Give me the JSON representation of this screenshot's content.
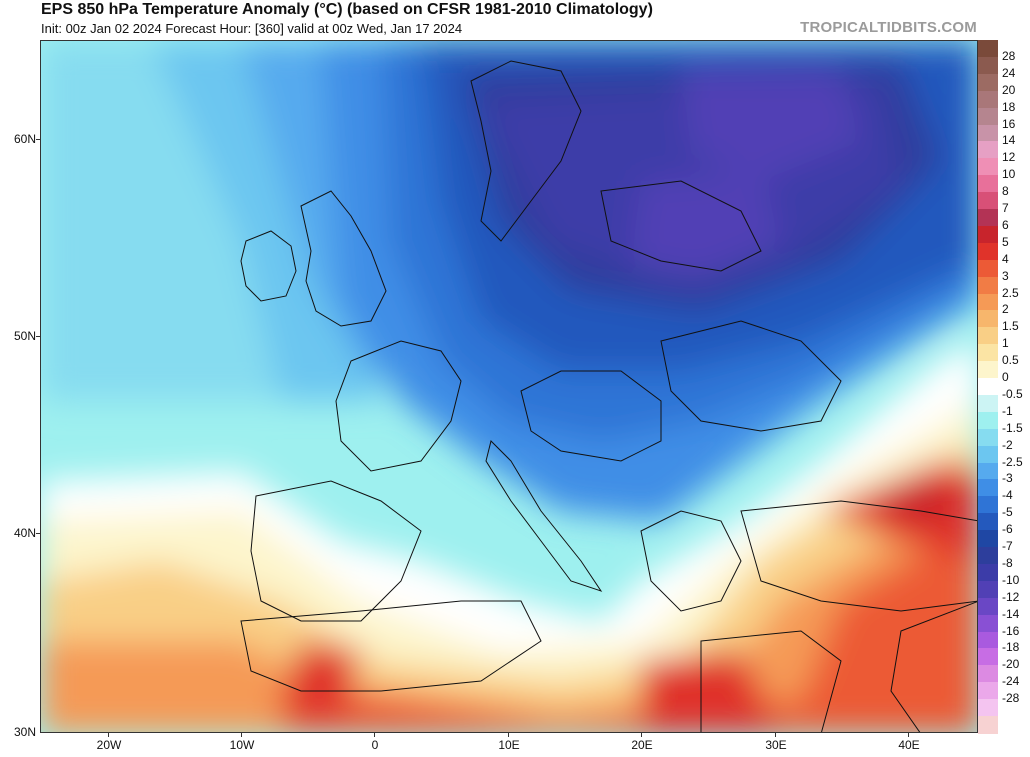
{
  "header": {
    "title": "EPS 850 hPa Temperature Anomaly (°C) (based on CFSR 1981-2010 Climatology)",
    "subtitle": "Init: 00z Jan 02 2024   Forecast Hour: [360]   valid at 00z Wed, Jan 17 2024",
    "watermark": "TROPICALTIDBITS.COM"
  },
  "map": {
    "lat_labels": [
      "60N",
      "50N",
      "40N",
      "30N"
    ],
    "lon_labels": [
      "20W",
      "10W",
      "0",
      "10E",
      "20E",
      "30E",
      "40E"
    ]
  },
  "colorbar": {
    "labels": [
      "28",
      "24",
      "20",
      "18",
      "16",
      "14",
      "12",
      "10",
      "8",
      "7",
      "6",
      "5",
      "4",
      "3",
      "2.5",
      "2",
      "1.5",
      "1",
      "0.5",
      "0",
      "-0.5",
      "-1",
      "-1.5",
      "-2",
      "-2.5",
      "-3",
      "-4",
      "-5",
      "-6",
      "-7",
      "-8",
      "-10",
      "-12",
      "-14",
      "-16",
      "-18",
      "-20",
      "-24",
      "-28"
    ],
    "colors": [
      "#7a4a3a",
      "#8b5a4f",
      "#9c6b63",
      "#a97779",
      "#b5858f",
      "#c893a8",
      "#e6a0c4",
      "#ef8fb5",
      "#e8709a",
      "#d85077",
      "#b33355",
      "#c8242c",
      "#e0332a",
      "#ec5a36",
      "#f17c45",
      "#f59a56",
      "#f7b66c",
      "#f9cf86",
      "#fbe4a4",
      "#fdf5cc",
      "#ffffff",
      "#ccf4f4",
      "#9ef0ef",
      "#86dcf0",
      "#6cc6f0",
      "#56aaee",
      "#3f8ee6",
      "#2f74d6",
      "#2459bd",
      "#1f47a4",
      "#2d3e9c",
      "#3c3ca8",
      "#5140b5",
      "#6a47c5",
      "#8950d4",
      "#a95adf",
      "#c76de4",
      "#dc8ae2",
      "#eba8ea",
      "#f4c4f0",
      "#f7d2d2"
    ]
  }
}
